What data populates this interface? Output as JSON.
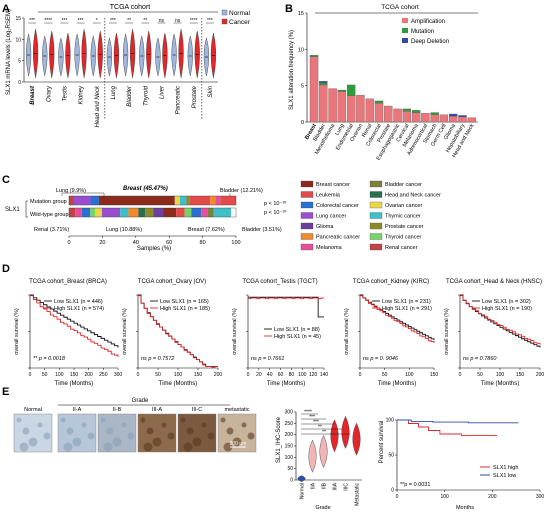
{
  "panel_labels": [
    "A",
    "B",
    "C",
    "D",
    "E"
  ],
  "panel_a": {
    "title": "TCGA cohort",
    "ylabel": "SLX1 mRNA levels (Log₂RSEM)",
    "legend": [
      {
        "label": "Normal",
        "color": "#9fb6dd"
      },
      {
        "label": "Cancer",
        "color": "#e3262a"
      }
    ],
    "yticks": [
      "0",
      "5",
      "10",
      "15"
    ],
    "categories": [
      "Breast",
      "Ovary",
      "Testis",
      "Kidney",
      "Head and Neck",
      "Lung",
      "Bladder",
      "Thyroid",
      "Liver",
      "Pancreatic",
      "Prostate",
      "Skin"
    ],
    "significance": [
      "***",
      "****",
      "***",
      "***",
      "*",
      "***",
      "**",
      "**",
      "ns",
      "ns",
      "****",
      "***"
    ]
  },
  "panel_b": {
    "title": "TCGA cohort",
    "ylabel": "SLX1 alteration frequency (%)",
    "yticks": [
      "0",
      "5",
      "10",
      "15"
    ],
    "legend": [
      {
        "label": "Amplification",
        "color": "#e8767a"
      },
      {
        "label": "Mutation",
        "color": "#2e9b3c"
      },
      {
        "label": "Deep Deletion",
        "color": "#2b4eaa"
      }
    ],
    "chart_data": {
      "type": "bar",
      "ylim": [
        0,
        15
      ],
      "categories": [
        "Breast",
        "Bladder",
        "Mesothelioma",
        "Lung",
        "Endometrial",
        "Ovarian",
        "Renal",
        "Colorectal",
        "Prostate",
        "Esophagogastric",
        "Cervical",
        "Melanoma",
        "Adrenocortical",
        "Stomach",
        "Germ Cell",
        "Glioma",
        "Hepatobiliary",
        "Head and Neck"
      ],
      "series": [
        {
          "name": "Amplification",
          "color": "#e8767a",
          "values": [
            9.0,
            5.1,
            4.6,
            4.2,
            3.6,
            3.7,
            3.2,
            2.6,
            2.2,
            1.8,
            1.5,
            1.3,
            1.2,
            1.0,
            1.0,
            0.8,
            0.7,
            0.6
          ]
        },
        {
          "name": "Mutation",
          "color": "#2e9b3c",
          "values": [
            0.2,
            0.3,
            0,
            0.2,
            1.5,
            0,
            0,
            0.3,
            0,
            0,
            0.3,
            0.3,
            0,
            0.3,
            0,
            0,
            0,
            0
          ]
        },
        {
          "name": "Deep Deletion",
          "color": "#2b4eaa",
          "values": [
            0,
            0.2,
            0,
            0,
            0,
            0,
            0,
            0,
            0,
            0,
            0,
            0,
            0,
            0,
            0,
            0.3,
            0.2,
            0
          ]
        }
      ]
    }
  },
  "panel_c": {
    "row_label": "SLX1",
    "groups": [
      "Mutation group",
      "Wild-type group"
    ],
    "top_labels": [
      "Lung (9.9%)",
      "Breast (45.47%)",
      "Bladder (12.21%)"
    ],
    "bottom_labels": [
      "Renal (3.71%)",
      "Lung (10.88%)",
      "Breast (7.62%)",
      "Bladder (3.51%)"
    ],
    "pvals": [
      "p < 10⁻¹⁰",
      "p < 10⁻¹⁰"
    ],
    "xticks": [
      "0",
      "20",
      "40",
      "60",
      "80",
      "100"
    ],
    "xlabel": "Samples (%)",
    "legend": [
      {
        "label": "Breast cancer",
        "color": "#8b2a1d"
      },
      {
        "label": "Bladder cancer",
        "color": "#7f7f3f"
      },
      {
        "label": "Leukemia",
        "color": "#e34b4b"
      },
      {
        "label": "Head and Neck cancer",
        "color": "#2a6f4d"
      },
      {
        "label": "Colorectal cancer",
        "color": "#2b6fd1"
      },
      {
        "label": "Ovarian cancer",
        "color": "#e7d84a"
      },
      {
        "label": "Lung cancer",
        "color": "#9b4fd0"
      },
      {
        "label": "Thymic cancer",
        "color": "#3fc0c9"
      },
      {
        "label": "Glioma",
        "color": "#6b3fa0"
      },
      {
        "label": "Prostate cancer",
        "color": "#8b8b2a"
      },
      {
        "label": "Pancreatic cancer",
        "color": "#f08a2a"
      },
      {
        "label": "Thyroid cancer",
        "color": "#79d36b"
      },
      {
        "label": "Melanoma",
        "color": "#e64f9a"
      },
      {
        "label": "Renal cancer",
        "color": "#c24444"
      }
    ],
    "mut_segments": [
      {
        "pct": 3,
        "color": "#c24444"
      },
      {
        "pct": 9.9,
        "color": "#9b4fd0"
      },
      {
        "pct": 5,
        "color": "#2b6fd1"
      },
      {
        "pct": 45.47,
        "color": "#8b2a1d"
      },
      {
        "pct": 3,
        "color": "#e7d84a"
      },
      {
        "pct": 4,
        "color": "#3fc0c9"
      },
      {
        "pct": 2,
        "color": "#8b8b2a"
      },
      {
        "pct": 12.21,
        "color": "#e34b4b"
      },
      {
        "pct": 3,
        "color": "#f08a2a"
      },
      {
        "pct": 3,
        "color": "#e64f9a"
      },
      {
        "pct": 9.42,
        "color": "#e34b4b"
      }
    ],
    "wt_segments": [
      {
        "pct": 3.71,
        "color": "#c24444"
      },
      {
        "pct": 4,
        "color": "#e64f9a"
      },
      {
        "pct": 5,
        "color": "#2b6fd1"
      },
      {
        "pct": 3,
        "color": "#79d36b"
      },
      {
        "pct": 4,
        "color": "#e7d84a"
      },
      {
        "pct": 10.88,
        "color": "#9b4fd0"
      },
      {
        "pct": 5,
        "color": "#3fc0c9"
      },
      {
        "pct": 6,
        "color": "#f08a2a"
      },
      {
        "pct": 4,
        "color": "#2a6f4d"
      },
      {
        "pct": 5,
        "color": "#8b8b2a"
      },
      {
        "pct": 6,
        "color": "#6b3fa0"
      },
      {
        "pct": 7.62,
        "color": "#8b2a1d"
      },
      {
        "pct": 5,
        "color": "#e34b4b"
      },
      {
        "pct": 4,
        "color": "#79d36b"
      },
      {
        "pct": 6,
        "color": "#2b6fd1"
      },
      {
        "pct": 4,
        "color": "#e64f9a"
      },
      {
        "pct": 3.51,
        "color": "#7f7f3f"
      },
      {
        "pct": 10.28,
        "color": "#3fc0c9"
      }
    ]
  },
  "panel_d": [
    {
      "title": "TCGA cohort_Breast (BRCA)",
      "low": "Low  SLX1 (n = 446)",
      "high": "High SLX1 (n = 574)",
      "p": "** p = 0.0018",
      "xticks": [
        "0",
        "50",
        "100",
        "150",
        "200",
        "250",
        "300"
      ],
      "xlabel": "Time (Months)",
      "ylabel": "overall survival (%)"
    },
    {
      "title": "TCGA cohort_Ovary (OV)",
      "low": "Low  SLX1 (n = 165)",
      "high": "High SLX1 (n = 185)",
      "p": "ns p = 0.7572",
      "xticks": [
        "0",
        "50",
        "100",
        "150",
        "200"
      ],
      "xlabel": "Time (Months)",
      "ylabel": "overall survival (%)"
    },
    {
      "title": "TCGA cohort_Testis (TGCT)",
      "low": "Low  SLX1 (n = 88)",
      "high": "High SLX1 (n = 45)",
      "p": "ns p = 0.7661",
      "xticks": [
        "0",
        "20",
        "40",
        "60",
        "80",
        "100",
        "120",
        "140"
      ],
      "xlabel": "Time (Months)",
      "ylabel": "overall survival (%)"
    },
    {
      "title": "TCGA cohort_Kidney (KIRC)",
      "low": "Low  SLX1 (n = 231)",
      "high": "High SLX1 (n = 291)",
      "p": "ns p = 0. 9046",
      "xticks": [
        "0",
        "50",
        "100",
        "150"
      ],
      "xlabel": "Time (Months)",
      "ylabel": "overall survival (%)"
    },
    {
      "title": "TCGA cohort_Head & Neck (HNSC)",
      "low": "Low  SLX1 (n = 302)",
      "high": "High SLX1 (n = 190)",
      "p": "ns p = 0.7860",
      "xticks": [
        "0",
        "50",
        "100",
        "150",
        "200"
      ],
      "xlabel": "Time (Months)",
      "ylabel": "overall survival (%)"
    }
  ],
  "panel_e": {
    "grade_header": "Grade",
    "histo_labels": [
      "Normal",
      "II-A",
      "II-B",
      "III-A",
      "III-C",
      "metastatic"
    ],
    "scale_bar": "200 µm",
    "ihc_ylabel": "SLX1_IHC-Score",
    "ihc_yticks": [
      "0",
      "50",
      "100",
      "150",
      "200",
      "250",
      "300"
    ],
    "ihc_cats": [
      "Normal",
      "IIA",
      "IIB",
      "IIIA",
      "IIIC",
      "Metastatic"
    ],
    "ihc_xlabel": "Grade",
    "ihc_sig": [
      "****",
      "***",
      "***",
      "**",
      "**"
    ],
    "km_ylabel": "Percent survival",
    "km_xlabel": "Months",
    "km_yticks": [
      "0",
      "50",
      "100"
    ],
    "km_xticks": [
      "0",
      "100",
      "200",
      "300"
    ],
    "km_legend": [
      {
        "label": "SLX1 high",
        "color": "#e3262a"
      },
      {
        "label": "SLX1 low",
        "color": "#2b4eaa"
      }
    ],
    "km_p": "**p = 0.0031"
  }
}
